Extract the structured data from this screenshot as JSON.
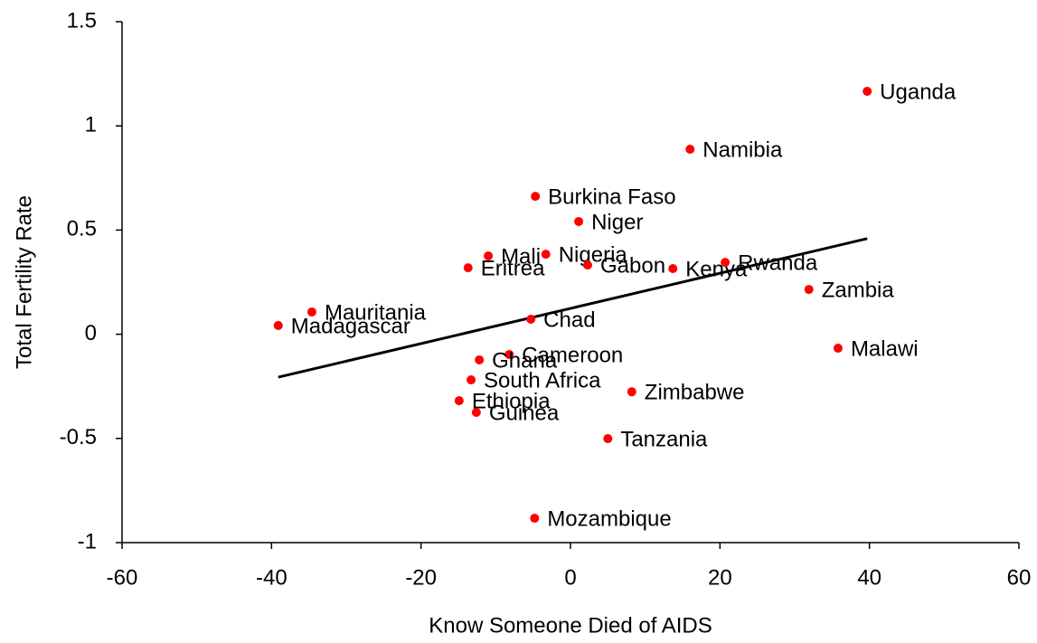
{
  "chart_data": {
    "type": "scatter",
    "x_label": "Know Someone Died of AIDS",
    "y_label": "Total Fertility Rate",
    "labels": [
      "Uganda",
      "Namibia",
      "Burkina Faso",
      "Niger",
      "Mali",
      "Nigeria",
      "Eritrea",
      "Gabon",
      "Kenya",
      "Rwanda",
      "Zambia",
      "Mauritania",
      "Madagascar",
      "Chad",
      "Malawi",
      "Cameroon",
      "Ghana",
      "South Africa",
      "Zimbabwe",
      "Ethiopia",
      "Guinea",
      "Tanzania",
      "Mozambique"
    ],
    "x": [
      39.7,
      16.0,
      -4.7,
      1.1,
      -11.0,
      -3.3,
      -13.7,
      2.3,
      13.7,
      20.7,
      31.9,
      -34.6,
      -39.1,
      -5.3,
      35.8,
      -8.2,
      -12.2,
      -13.3,
      8.2,
      -14.9,
      -12.6,
      5.0,
      -4.8
    ],
    "y": [
      1.166,
      0.888,
      0.662,
      0.541,
      0.376,
      0.384,
      0.319,
      0.332,
      0.315,
      0.345,
      0.215,
      0.107,
      0.042,
      0.072,
      -0.067,
      -0.097,
      -0.123,
      -0.219,
      -0.276,
      -0.319,
      -0.375,
      -0.501,
      -0.883
    ],
    "color": "#ff0000",
    "trendline": {
      "x": [
        -39.1,
        39.7
      ],
      "y": [
        -0.206,
        0.459
      ],
      "color": "#000000"
    },
    "xlim": [
      -60,
      60
    ],
    "xticks": [
      -60,
      -40,
      -20,
      0,
      20,
      40,
      60
    ],
    "ylim": [
      -1,
      1.5
    ],
    "yticks": [
      -1,
      -0.5,
      0,
      0.5,
      1,
      1.5
    ]
  }
}
